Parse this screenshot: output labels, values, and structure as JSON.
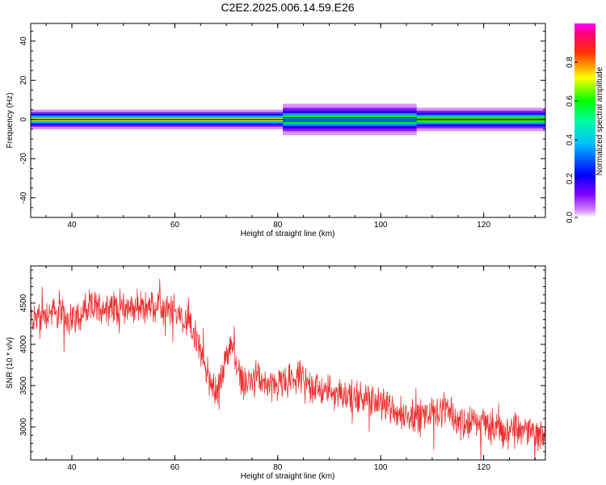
{
  "title": "C2E2.2025.006.14.59.E26",
  "spectrogram": {
    "xlabel": "Height of straight line (km)",
    "ylabel": "Frequency (Hz)",
    "xlim": [
      32,
      132
    ],
    "ylim": [
      -50,
      49
    ],
    "xticks": [
      "40",
      "60",
      "80",
      "100",
      "120"
    ],
    "yticks": [
      "40",
      "20",
      "0",
      "-20",
      "-40"
    ],
    "colorbar": {
      "label": "Normalized spectral amplitude",
      "ticks": [
        "0.0",
        "0.2",
        "0.4",
        "0.6",
        "0.8"
      ],
      "range": [
        0,
        1
      ],
      "colormap": "rainbow: magenta-blue-cyan-green-yellow-red-magenta"
    }
  },
  "snr": {
    "xlabel": "Height of straight line (km)",
    "ylabel": "SNR (10 * v/v)",
    "xlim": [
      32,
      132
    ],
    "ylim": [
      2600,
      4950
    ],
    "xticks": [
      "40",
      "60",
      "80",
      "100",
      "120"
    ],
    "yticks": [
      "4500",
      "4000",
      "3500",
      "3000"
    ],
    "line_color": "#f03030"
  },
  "chart_data": [
    {
      "type": "heatmap",
      "title": "C2E2.2025.006.14.59.E26",
      "xlabel": "Height of straight line (km)",
      "ylabel": "Frequency (Hz)",
      "x_range": [
        32,
        132
      ],
      "y_range": [
        -50,
        49
      ],
      "description_values": {
        "band_center_hz": 0,
        "band_segments": [
          {
            "x": [
              32,
              81
            ],
            "half_width_hz": 2.5,
            "peak_amplitude": 1.0
          },
          {
            "x": [
              81,
              107
            ],
            "half_width_hz": 4,
            "peak_amplitude": 0.45
          },
          {
            "x": [
              107,
              132
            ],
            "half_width_hz": 3,
            "peak_amplitude": 0.9
          }
        ]
      }
    },
    {
      "type": "line",
      "xlabel": "Height of straight line (km)",
      "ylabel": "SNR (10 * v/v)",
      "ylim": [
        2600,
        4950
      ],
      "x": [
        32,
        36,
        40,
        44,
        48,
        52,
        56,
        60,
        62,
        64,
        66,
        68,
        70,
        71,
        72,
        74,
        76,
        78,
        80,
        84,
        88,
        92,
        96,
        100,
        104,
        108,
        112,
        116,
        120,
        124,
        128,
        132
      ],
      "y": [
        4300,
        4400,
        4300,
        4450,
        4450,
        4450,
        4450,
        4400,
        4300,
        4100,
        3700,
        3400,
        3800,
        4050,
        3700,
        3500,
        3600,
        3500,
        3500,
        3600,
        3450,
        3400,
        3350,
        3300,
        3150,
        3150,
        3200,
        3050,
        3050,
        2950,
        2950,
        2900
      ]
    }
  ]
}
